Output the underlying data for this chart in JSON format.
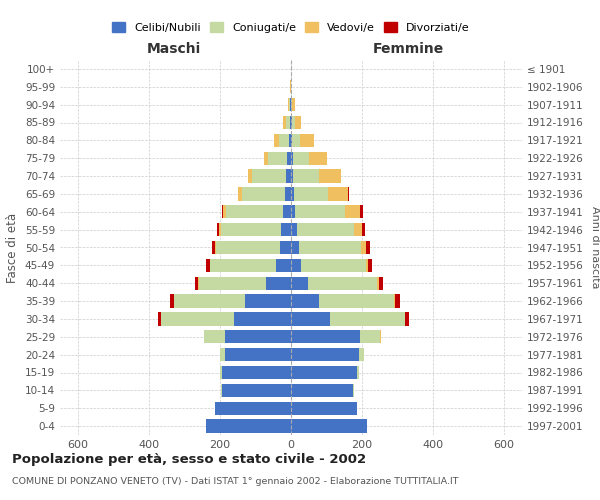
{
  "age_groups": [
    "100+",
    "95-99",
    "90-94",
    "85-89",
    "80-84",
    "75-79",
    "70-74",
    "65-69",
    "60-64",
    "55-59",
    "50-54",
    "45-49",
    "40-44",
    "35-39",
    "30-34",
    "25-29",
    "20-24",
    "15-19",
    "10-14",
    "5-9",
    "0-4"
  ],
  "birth_years": [
    "≤ 1901",
    "1902-1906",
    "1907-1911",
    "1912-1916",
    "1917-1921",
    "1922-1926",
    "1927-1931",
    "1932-1936",
    "1937-1941",
    "1942-1946",
    "1947-1951",
    "1952-1956",
    "1957-1961",
    "1962-1966",
    "1967-1971",
    "1972-1976",
    "1977-1981",
    "1982-1986",
    "1987-1991",
    "1992-1996",
    "1997-2001"
  ],
  "maschi": {
    "celibi": [
      0,
      0,
      2,
      3,
      5,
      10,
      15,
      18,
      22,
      28,
      32,
      42,
      70,
      130,
      160,
      185,
      185,
      195,
      195,
      215,
      240
    ],
    "coniugati": [
      0,
      1,
      4,
      12,
      30,
      55,
      95,
      120,
      160,
      170,
      180,
      185,
      190,
      200,
      205,
      60,
      15,
      5,
      2,
      0,
      0
    ],
    "vedovi": [
      0,
      1,
      3,
      8,
      12,
      12,
      12,
      12,
      8,
      5,
      3,
      2,
      1,
      0,
      0,
      0,
      0,
      0,
      0,
      0,
      0
    ],
    "divorziati": [
      0,
      0,
      0,
      0,
      0,
      0,
      0,
      0,
      5,
      5,
      8,
      10,
      10,
      10,
      10,
      0,
      0,
      0,
      0,
      0,
      0
    ]
  },
  "femmine": {
    "nubili": [
      0,
      0,
      0,
      2,
      3,
      5,
      5,
      8,
      12,
      18,
      22,
      28,
      48,
      80,
      110,
      195,
      190,
      185,
      175,
      185,
      215
    ],
    "coniugate": [
      0,
      0,
      2,
      8,
      22,
      45,
      75,
      95,
      140,
      160,
      175,
      182,
      195,
      210,
      210,
      55,
      15,
      5,
      2,
      0,
      0
    ],
    "vedove": [
      0,
      1,
      8,
      18,
      40,
      50,
      60,
      58,
      42,
      22,
      14,
      8,
      5,
      2,
      2,
      2,
      0,
      0,
      0,
      0,
      0
    ],
    "divorziate": [
      0,
      0,
      0,
      0,
      0,
      2,
      2,
      2,
      8,
      8,
      10,
      10,
      10,
      15,
      10,
      2,
      0,
      0,
      0,
      0,
      0
    ]
  },
  "color_celibi": "#4472c4",
  "color_coniugati": "#c5d9a3",
  "color_vedovi": "#f0c060",
  "color_divorziati": "#c00000",
  "title": "Popolazione per età, sesso e stato civile - 2002",
  "subtitle": "COMUNE DI PONZANO VENETO (TV) - Dati ISTAT 1° gennaio 2002 - Elaborazione TUTTITALIA.IT",
  "xlabel_maschi": "Maschi",
  "xlabel_femmine": "Femmine",
  "ylabel_left": "Fasce di età",
  "ylabel_right": "Anni di nascita",
  "xlim": 650,
  "bg_color": "#ffffff",
  "grid_color": "#cccccc"
}
